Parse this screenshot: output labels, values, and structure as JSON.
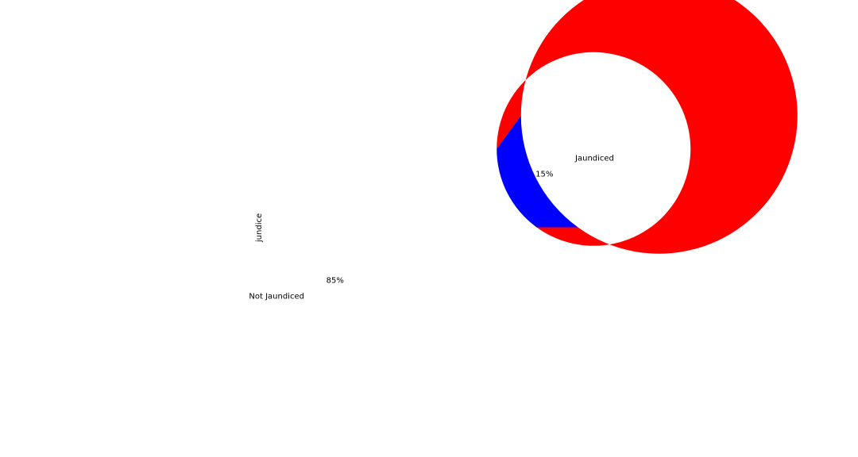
{
  "chart_data": {
    "type": "pie",
    "style": "donut",
    "ylabel": "jundice",
    "slices": [
      {
        "label": "Not Jaundiced",
        "value": 85,
        "pct_label": "85%",
        "color": "#ff0000"
      },
      {
        "label": "Jaundiced",
        "value": 15,
        "pct_label": "15%",
        "color": "#0000ff"
      }
    ],
    "start_angle_deg": 0,
    "direction": "counterclockwise",
    "legend": "none",
    "grid": false
  }
}
